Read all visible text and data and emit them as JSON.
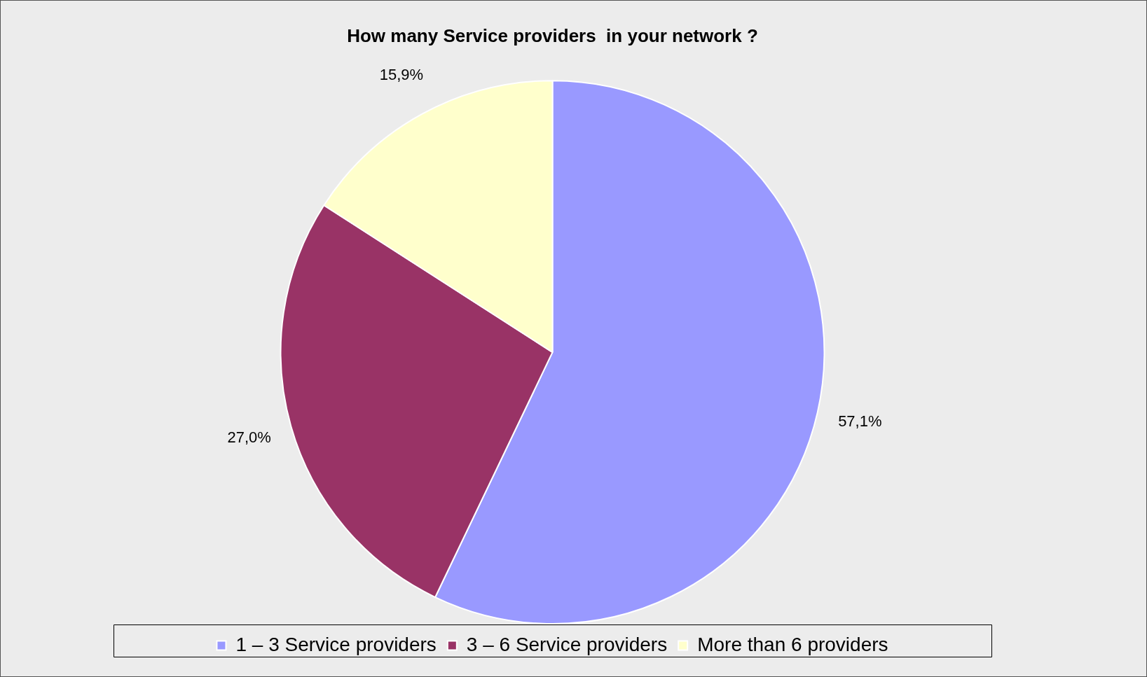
{
  "chart_data": {
    "type": "pie",
    "title": "How many Service providers  in your network ?",
    "categories": [
      "1 – 3 Service providers",
      "3 – 6 Service providers",
      "More than 6 providers"
    ],
    "values": [
      57.1,
      27.0,
      15.9
    ],
    "colors": [
      "#9999ff",
      "#993366",
      "#ffffcc"
    ],
    "value_labels": [
      "57,1%",
      "27,0%",
      "15,9%"
    ],
    "legend": "bottom"
  }
}
